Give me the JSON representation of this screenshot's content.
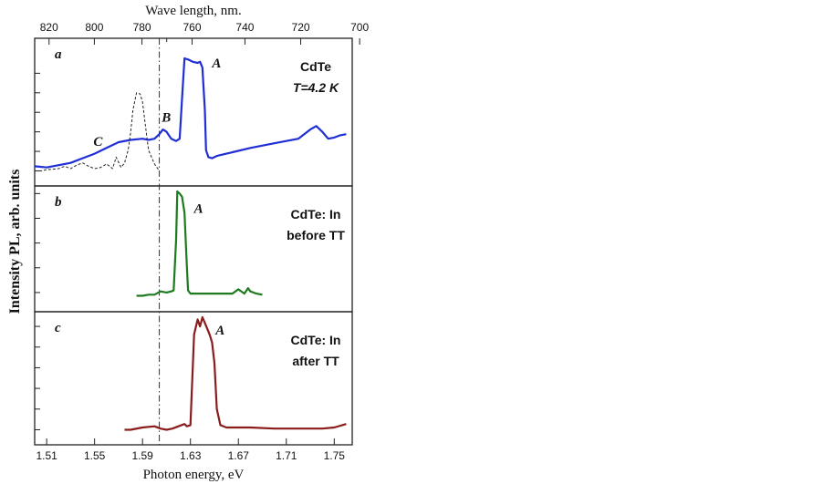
{
  "chart_data": {
    "type": "line",
    "x_axis": {
      "label": "Photon energy, eV",
      "range": [
        1.5,
        1.765
      ],
      "ticks": [
        1.51,
        1.55,
        1.59,
        1.63,
        1.67,
        1.71,
        1.75
      ],
      "tick_labels": [
        "1.51",
        "1.55",
        "1.59",
        "1.63",
        "1.67",
        "1.71",
        "1.75"
      ]
    },
    "top_axis": {
      "label": "Wave length, nm.",
      "ticks_nm": [
        820,
        800,
        780,
        760,
        740,
        720,
        700
      ],
      "tick_labels": [
        "820",
        "800",
        "780",
        "760",
        "740",
        "720",
        "700"
      ],
      "minor_ticks_nm": [
        770
      ]
    },
    "y_axis_label": "Intensity  PL, arb. units",
    "vertical_marker": {
      "x": 1.604,
      "style": "dash-dot"
    },
    "panels": [
      {
        "letter": "a",
        "notes": [
          "CdTe",
          "T=4.2 K"
        ],
        "note_italic": [
          false,
          true
        ],
        "color": "#1f2ed6",
        "ylim": [
          0,
          1
        ],
        "y_ticks": [
          0.02,
          0.19,
          0.36,
          0.53,
          0.7,
          0.87
        ],
        "series": [
          {
            "x": [
              1.5,
              1.51,
              1.52,
              1.53,
              1.54,
              1.55,
              1.56,
              1.57,
              1.58,
              1.59,
              1.595,
              1.6,
              1.604,
              1.607,
              1.61,
              1.614,
              1.618,
              1.621,
              1.623,
              1.625,
              1.628,
              1.632,
              1.636,
              1.638,
              1.64,
              1.642,
              1.643,
              1.645,
              1.648,
              1.652,
              1.66,
              1.68,
              1.7,
              1.72,
              1.73,
              1.735,
              1.74,
              1.745,
              1.75,
              1.755,
              1.76
            ],
            "y": [
              0.06,
              0.05,
              0.07,
              0.09,
              0.13,
              0.17,
              0.22,
              0.27,
              0.29,
              0.3,
              0.29,
              0.3,
              0.34,
              0.38,
              0.36,
              0.3,
              0.28,
              0.3,
              0.65,
              1.0,
              0.99,
              0.97,
              0.96,
              0.97,
              0.92,
              0.55,
              0.2,
              0.14,
              0.13,
              0.15,
              0.17,
              0.22,
              0.26,
              0.3,
              0.38,
              0.41,
              0.36,
              0.3,
              0.31,
              0.33,
              0.34
            ]
          },
          {
            "x": [
              1.5,
              1.505,
              1.51,
              1.52,
              1.525,
              1.53,
              1.535,
              1.54,
              1.545,
              1.55,
              1.555,
              1.56,
              1.565,
              1.568,
              1.572,
              1.575,
              1.578,
              1.58,
              1.582,
              1.585,
              1.588,
              1.59,
              1.592,
              1.595,
              1.6,
              1.604
            ],
            "y": [
              0.02,
              0.02,
              0.03,
              0.04,
              0.06,
              0.04,
              0.07,
              0.09,
              0.06,
              0.04,
              0.05,
              0.08,
              0.04,
              0.14,
              0.05,
              0.09,
              0.2,
              0.35,
              0.55,
              0.7,
              0.69,
              0.62,
              0.45,
              0.2,
              0.08,
              0.02
            ]
          }
        ],
        "peak_labels": [
          {
            "text": "A",
            "x": 1.648,
            "y": 0.92
          },
          {
            "text": "B",
            "x": 1.606,
            "y": 0.45
          },
          {
            "text": "C",
            "x": 1.549,
            "y": 0.24
          }
        ]
      },
      {
        "letter": "b",
        "notes": [
          "CdTe: In",
          "before TT"
        ],
        "note_italic": [
          false,
          false
        ],
        "color": "#1d7a1d",
        "ylim": [
          0,
          1
        ],
        "y_ticks": [
          0.06,
          0.29,
          0.52,
          0.75,
          0.98
        ],
        "series": [
          {
            "x": [
              1.585,
              1.59,
              1.595,
              1.6,
              1.605,
              1.61,
              1.614,
              1.616,
              1.618,
              1.619,
              1.621,
              1.623,
              1.625,
              1.627,
              1.628,
              1.63,
              1.635,
              1.64,
              1.65,
              1.66,
              1.665,
              1.67,
              1.675,
              1.678,
              1.68,
              1.685,
              1.69
            ],
            "y": [
              0.03,
              0.03,
              0.04,
              0.04,
              0.07,
              0.06,
              0.07,
              0.08,
              0.55,
              1.0,
              0.98,
              0.95,
              0.8,
              0.3,
              0.08,
              0.05,
              0.05,
              0.05,
              0.05,
              0.05,
              0.05,
              0.09,
              0.05,
              0.1,
              0.07,
              0.05,
              0.04
            ]
          }
        ],
        "peak_labels": [
          {
            "text": "A",
            "x": 1.633,
            "y": 0.8
          }
        ]
      },
      {
        "letter": "c",
        "notes": [
          "CdTe: In",
          "after TT"
        ],
        "note_italic": [
          false,
          false
        ],
        "color": "#8a1c1c",
        "ylim": [
          0,
          1
        ],
        "y_ticks": [
          0.02,
          0.2,
          0.38,
          0.56,
          0.74,
          0.92
        ],
        "series": [
          {
            "x": [
              1.575,
              1.58,
              1.59,
              1.6,
              1.605,
              1.61,
              1.615,
              1.62,
              1.625,
              1.627,
              1.63,
              1.633,
              1.636,
              1.638,
              1.64,
              1.642,
              1.644,
              1.646,
              1.648,
              1.65,
              1.652,
              1.655,
              1.66,
              1.67,
              1.68,
              1.7,
              1.72,
              1.74,
              1.75,
              1.76
            ],
            "y": [
              0.02,
              0.02,
              0.04,
              0.05,
              0.03,
              0.02,
              0.03,
              0.05,
              0.07,
              0.05,
              0.06,
              0.85,
              0.98,
              0.92,
              1.0,
              0.95,
              0.9,
              0.85,
              0.78,
              0.6,
              0.2,
              0.06,
              0.04,
              0.04,
              0.04,
              0.03,
              0.03,
              0.03,
              0.04,
              0.07
            ]
          }
        ],
        "peak_labels": [
          {
            "text": "A",
            "x": 1.651,
            "y": 0.85
          }
        ]
      }
    ]
  }
}
